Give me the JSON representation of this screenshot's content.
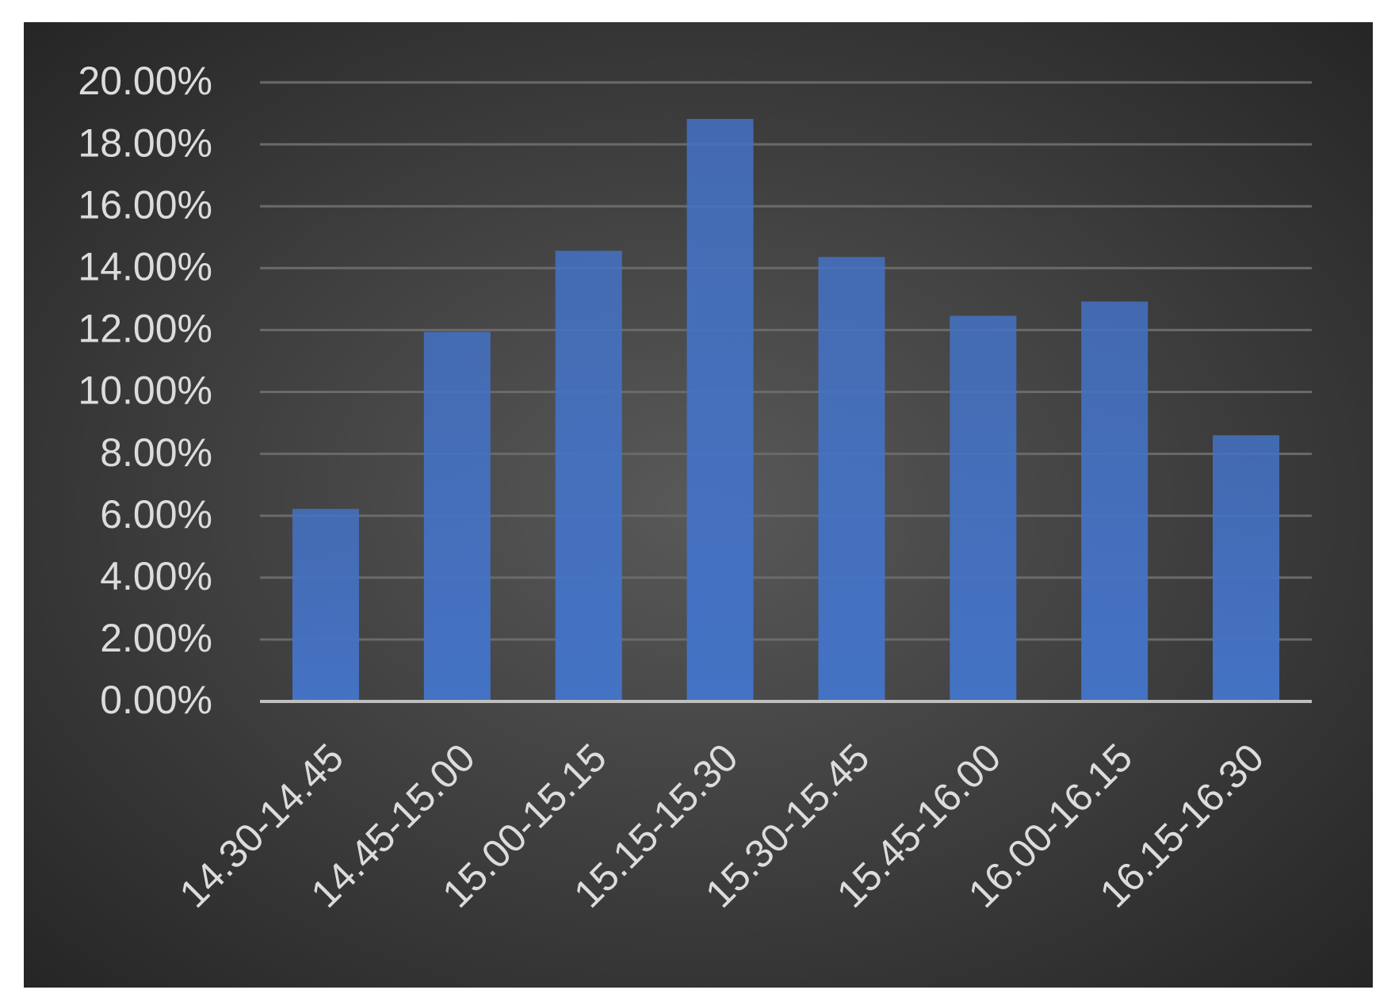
{
  "chart_data": {
    "type": "bar",
    "categories": [
      "14.30-14.45",
      "14.45-15.00",
      "15.00-15.15",
      "15.15-15.30",
      "15.30-15.45",
      "15.45-16.00",
      "16.00-16.15",
      "16.15-16.30"
    ],
    "values": [
      6.22,
      11.94,
      14.56,
      18.82,
      14.36,
      12.46,
      12.92,
      8.6
    ],
    "color": "#4472c4",
    "ylim": [
      0,
      20
    ],
    "yticks": [
      {
        "value": 0,
        "label": "0.00%"
      },
      {
        "value": 2,
        "label": "2.00%"
      },
      {
        "value": 4,
        "label": "4.00%"
      },
      {
        "value": 6,
        "label": "6.00%"
      },
      {
        "value": 8,
        "label": "8.00%"
      },
      {
        "value": 10,
        "label": "10.00%"
      },
      {
        "value": 12,
        "label": "12.00%"
      },
      {
        "value": 14,
        "label": "14.00%"
      },
      {
        "value": 16,
        "label": "16.00%"
      },
      {
        "value": 18,
        "label": "18.00%"
      },
      {
        "value": 20,
        "label": "20.00%"
      }
    ],
    "grid": true
  }
}
